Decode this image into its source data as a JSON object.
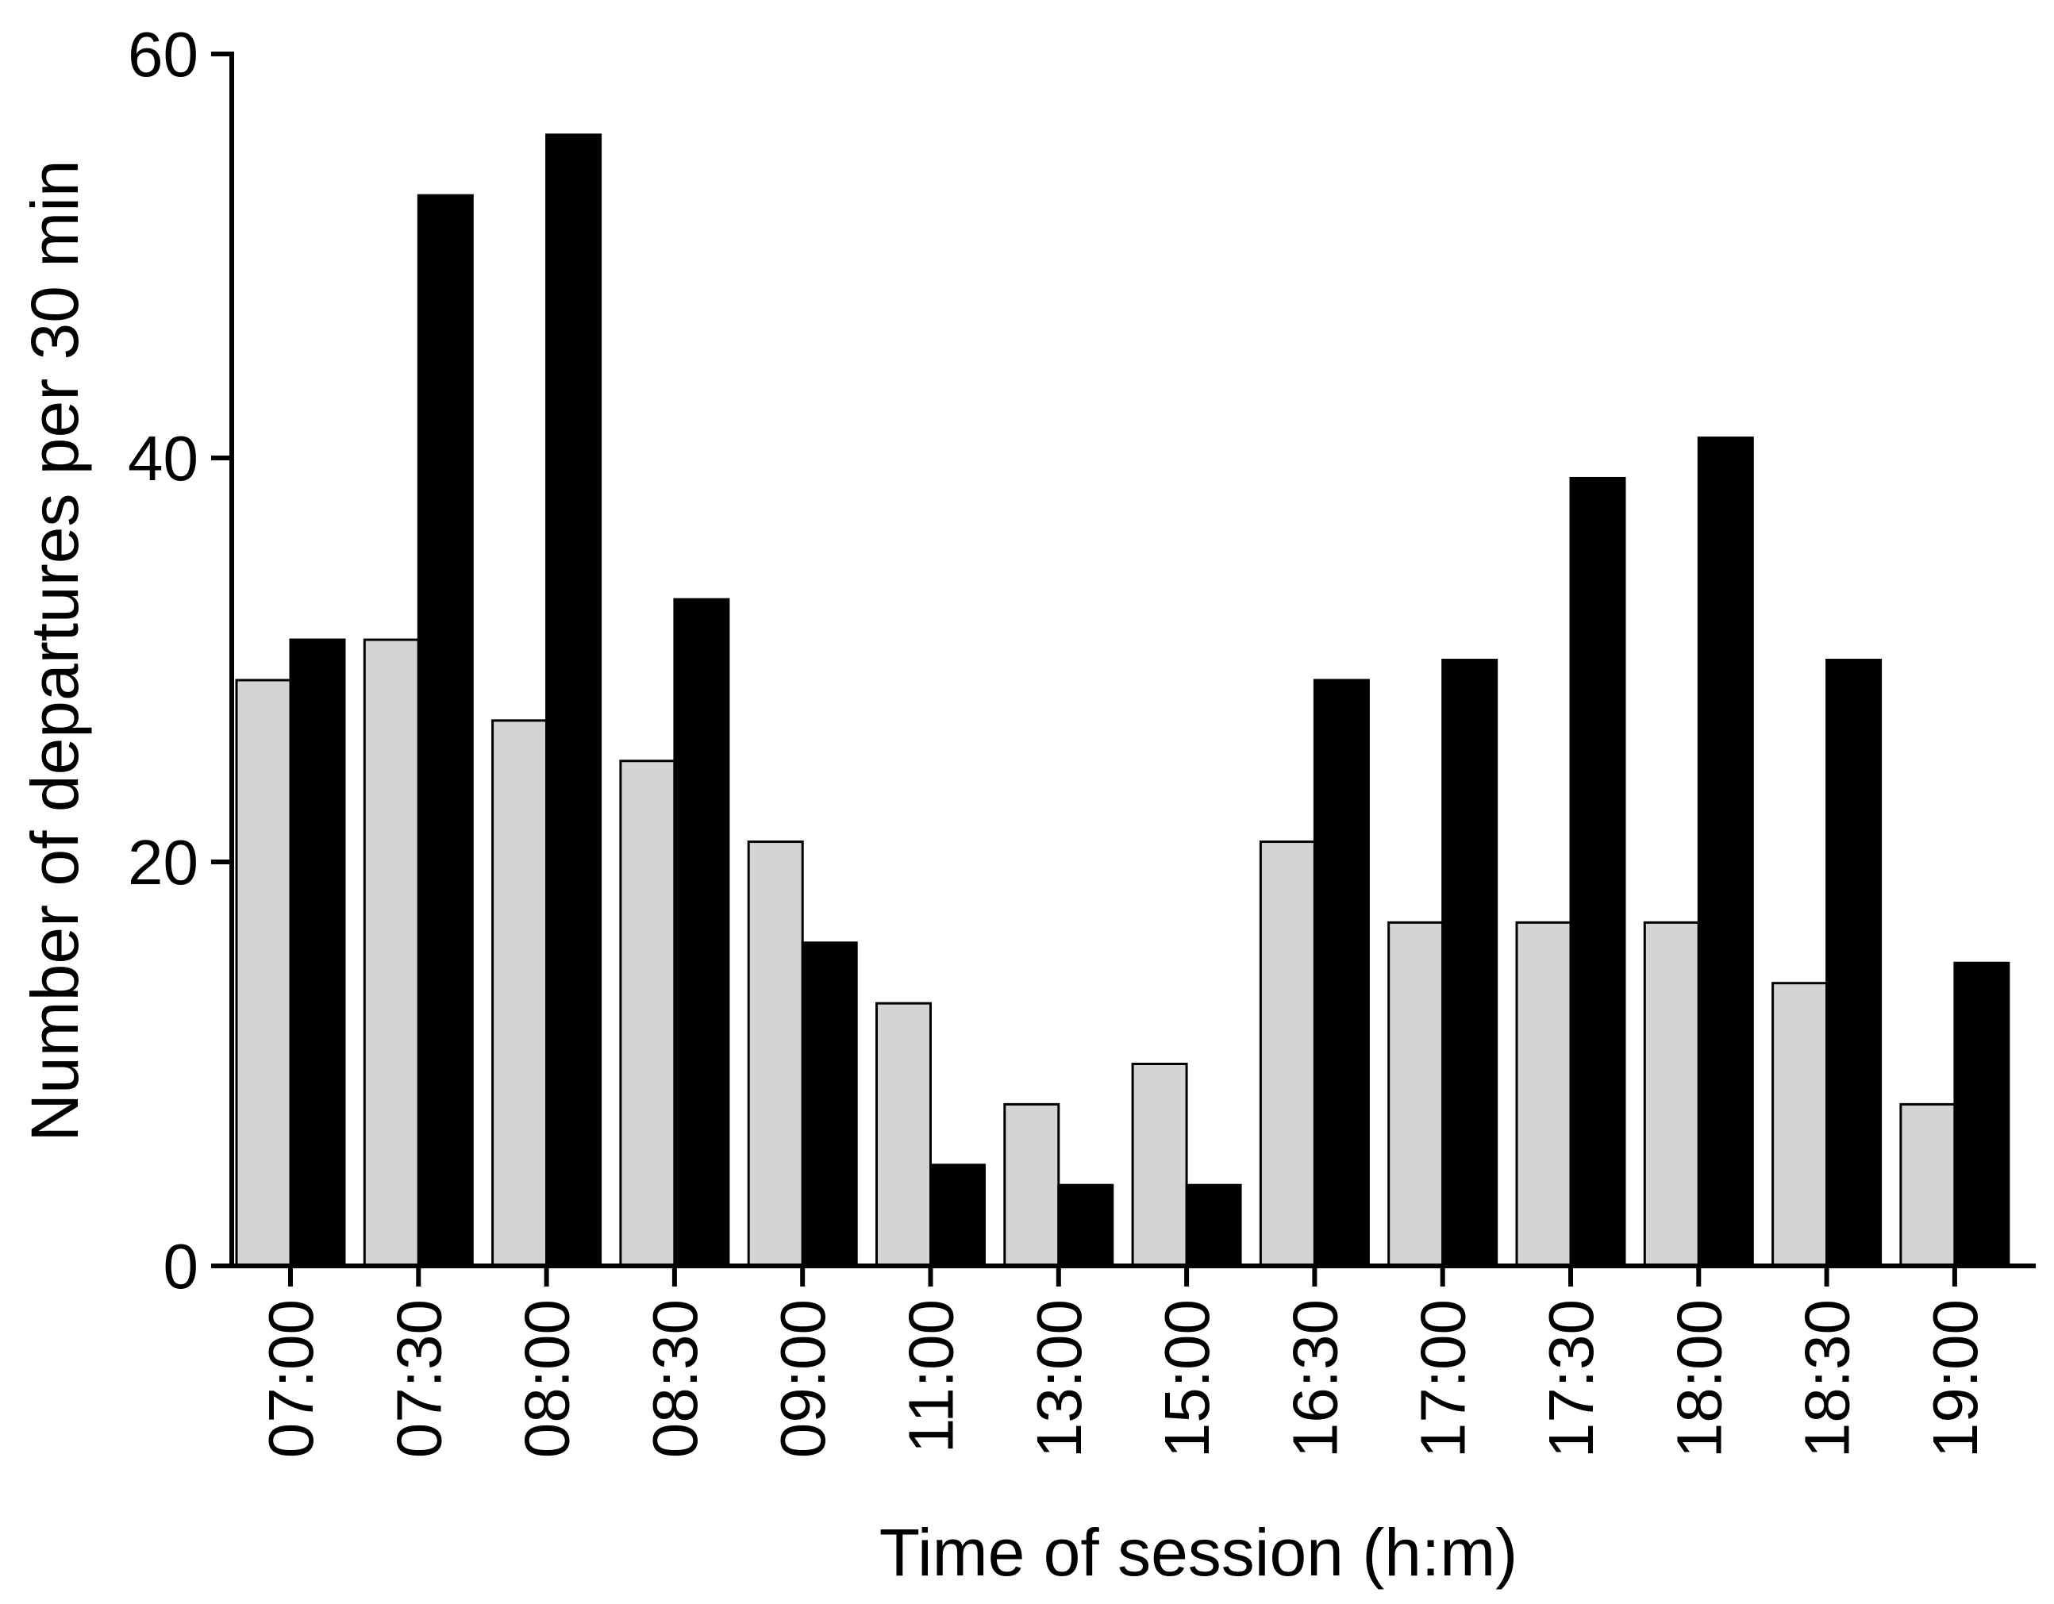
{
  "chart_data": {
    "type": "bar",
    "title": "",
    "xlabel": "Time of session (h:m)",
    "ylabel": "Number of departures per 30 min",
    "ylim": [
      0,
      60
    ],
    "yticks": [
      "0",
      "20",
      "40",
      "60"
    ],
    "grid": false,
    "legend": "none",
    "categories": [
      "07:00",
      "07:30",
      "08:00",
      "08:30",
      "09:00",
      "11:00",
      "13:00",
      "15:00",
      "16:30",
      "17:00",
      "17:30",
      "18:00",
      "18:30",
      "19:00"
    ],
    "series": [
      {
        "color": "#d4d4d4",
        "values": [
          29,
          31,
          27,
          25,
          21,
          13,
          8,
          10,
          21,
          17,
          17,
          17,
          14,
          8
        ]
      },
      {
        "color": "#000000",
        "values": [
          31,
          53,
          56,
          33,
          16,
          5,
          4,
          4,
          29,
          30,
          39,
          41,
          30,
          15
        ]
      }
    ]
  }
}
